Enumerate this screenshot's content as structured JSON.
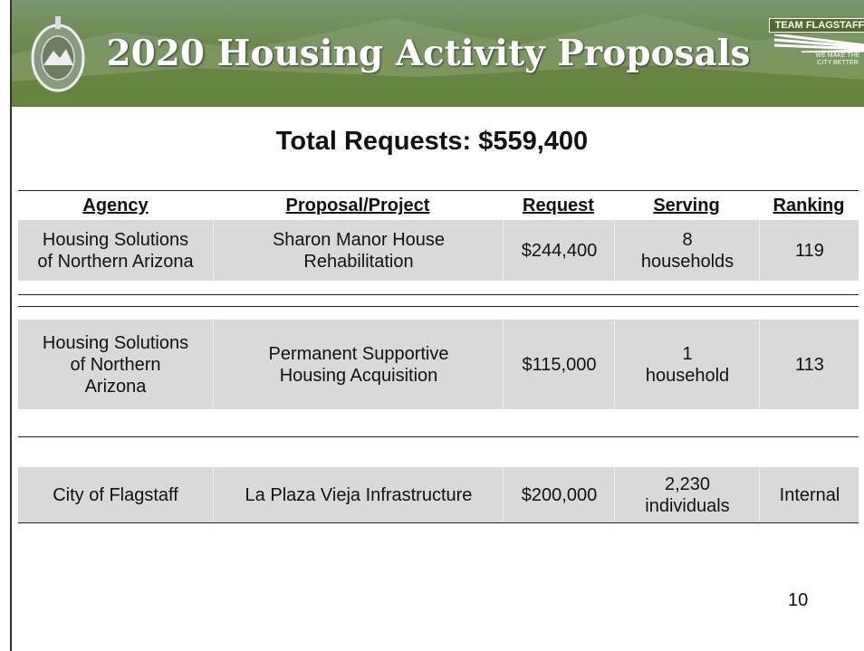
{
  "header": {
    "title": "2020 Housing Activity Proposals",
    "logo": {
      "title": "TEAM FLAGSTAFF",
      "tagline": [
        "WE MAKE THE",
        "CITY BETTER"
      ]
    }
  },
  "subtitle": "Total Requests: $559,400",
  "table": {
    "columns": [
      "Agency",
      "Proposal/Project",
      "Request",
      "Serving",
      "Ranking"
    ],
    "rows": [
      [
        [
          "Housing Solutions",
          "of Northern Arizona"
        ],
        [
          "Sharon Manor House",
          "Rehabilitation"
        ],
        [
          "$244,400"
        ],
        [
          "8",
          "households"
        ],
        [
          "119"
        ]
      ],
      [
        [
          "Housing Solutions",
          "of Northern",
          "Arizona"
        ],
        [
          "Permanent Supportive",
          "Housing Acquisition"
        ],
        [
          "$115,000"
        ],
        [
          "1",
          "household"
        ],
        [
          "113"
        ]
      ],
      [
        [
          "City of Flagstaff"
        ],
        [
          "La Plaza Vieja Infrastructure"
        ],
        [
          "$200,000"
        ],
        [
          "2,230",
          "individuals"
        ],
        [
          "Internal"
        ]
      ]
    ]
  },
  "page_number": "10"
}
